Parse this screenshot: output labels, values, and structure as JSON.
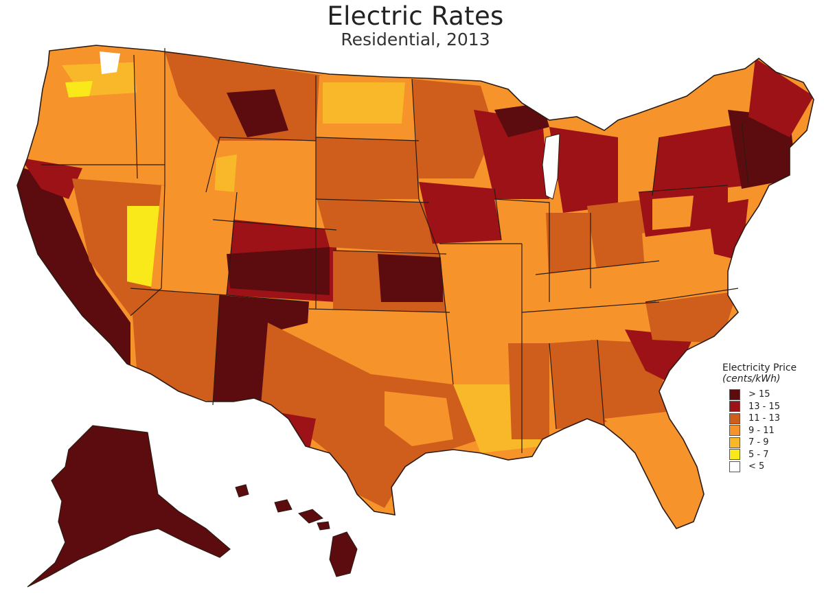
{
  "title": "Electric Rates",
  "subtitle": "Residential, 2013",
  "legend": {
    "title": "Electricity Price",
    "unit": "(cents/kWh)",
    "classes": [
      {
        "label": "> 15",
        "color": "#5c0c0f"
      },
      {
        "label": "13 - 15",
        "color": "#9c1216"
      },
      {
        "label": "11 - 13",
        "color": "#cf5e1c"
      },
      {
        "label": "9 - 11",
        "color": "#f6932b"
      },
      {
        "label": "7 - 9",
        "color": "#f9b72a"
      },
      {
        "label": "5 - 7",
        "color": "#f9e81a"
      },
      {
        "label": "< 5",
        "color": "#ffffff"
      }
    ]
  },
  "colors": {
    "border": "#2b1a12",
    "gt15": "#5c0c0f",
    "r13_15": "#9c1216",
    "r11_13": "#cf5e1c",
    "r9_11": "#f6932b",
    "r7_9": "#f9b72a",
    "r5_7": "#f9e81a",
    "lt5": "#ffffff"
  }
}
